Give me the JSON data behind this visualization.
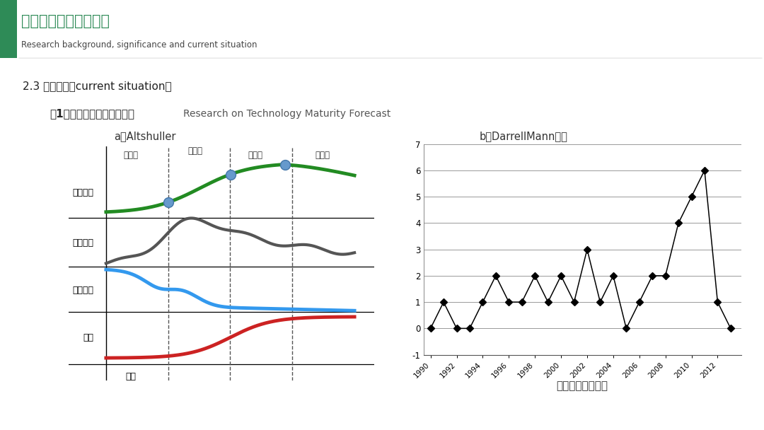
{
  "bg_color": "#ffffff",
  "header_green": "#2e8b57",
  "header_text": "研究背景、意义及现状",
  "header_sub": "Research background, significance and current situation",
  "section_title": "2.3 研究现状（current situation）",
  "subsection_bold": "（1）技术成熟度预测研究。",
  "subsection_rest": "  Research on Technology Maturity Forecast",
  "left_title": "a）Altshuller",
  "right_title": "b）DarrellMann模式",
  "right_xlabel": "降低成本专利分布",
  "label_xingneng": "性能参数",
  "label_zhuanli": "专利数量",
  "label_faming": "发明级别",
  "label_lirun": "利润",
  "label_shijian": "时间",
  "label_yinger": "婴儿期",
  "label_chengzhang": "成长期",
  "label_chengshu": "成熟期",
  "label_shuaitui": "衰退期",
  "darrell_years": [
    1990,
    1991,
    1992,
    1993,
    1994,
    1995,
    1996,
    1997,
    1998,
    1999,
    2000,
    2001,
    2002,
    2003,
    2004,
    2005,
    2006,
    2007,
    2008,
    2009,
    2010,
    2011,
    2012,
    2013
  ],
  "darrell_values": [
    0,
    1,
    0,
    0,
    1,
    2,
    1,
    1,
    2,
    1,
    2,
    1,
    3,
    1,
    2,
    0,
    1,
    2,
    2,
    4,
    5,
    6,
    1,
    0
  ],
  "darrell_ylim": [
    -1,
    7
  ],
  "darrell_yticks": [
    -1,
    0,
    1,
    2,
    3,
    4,
    5,
    6,
    7
  ],
  "green_color": "#228B22",
  "gray_color": "#555555",
  "blue_color": "#3399EE",
  "red_color": "#CC2222",
  "dot_color": "#6699CC"
}
